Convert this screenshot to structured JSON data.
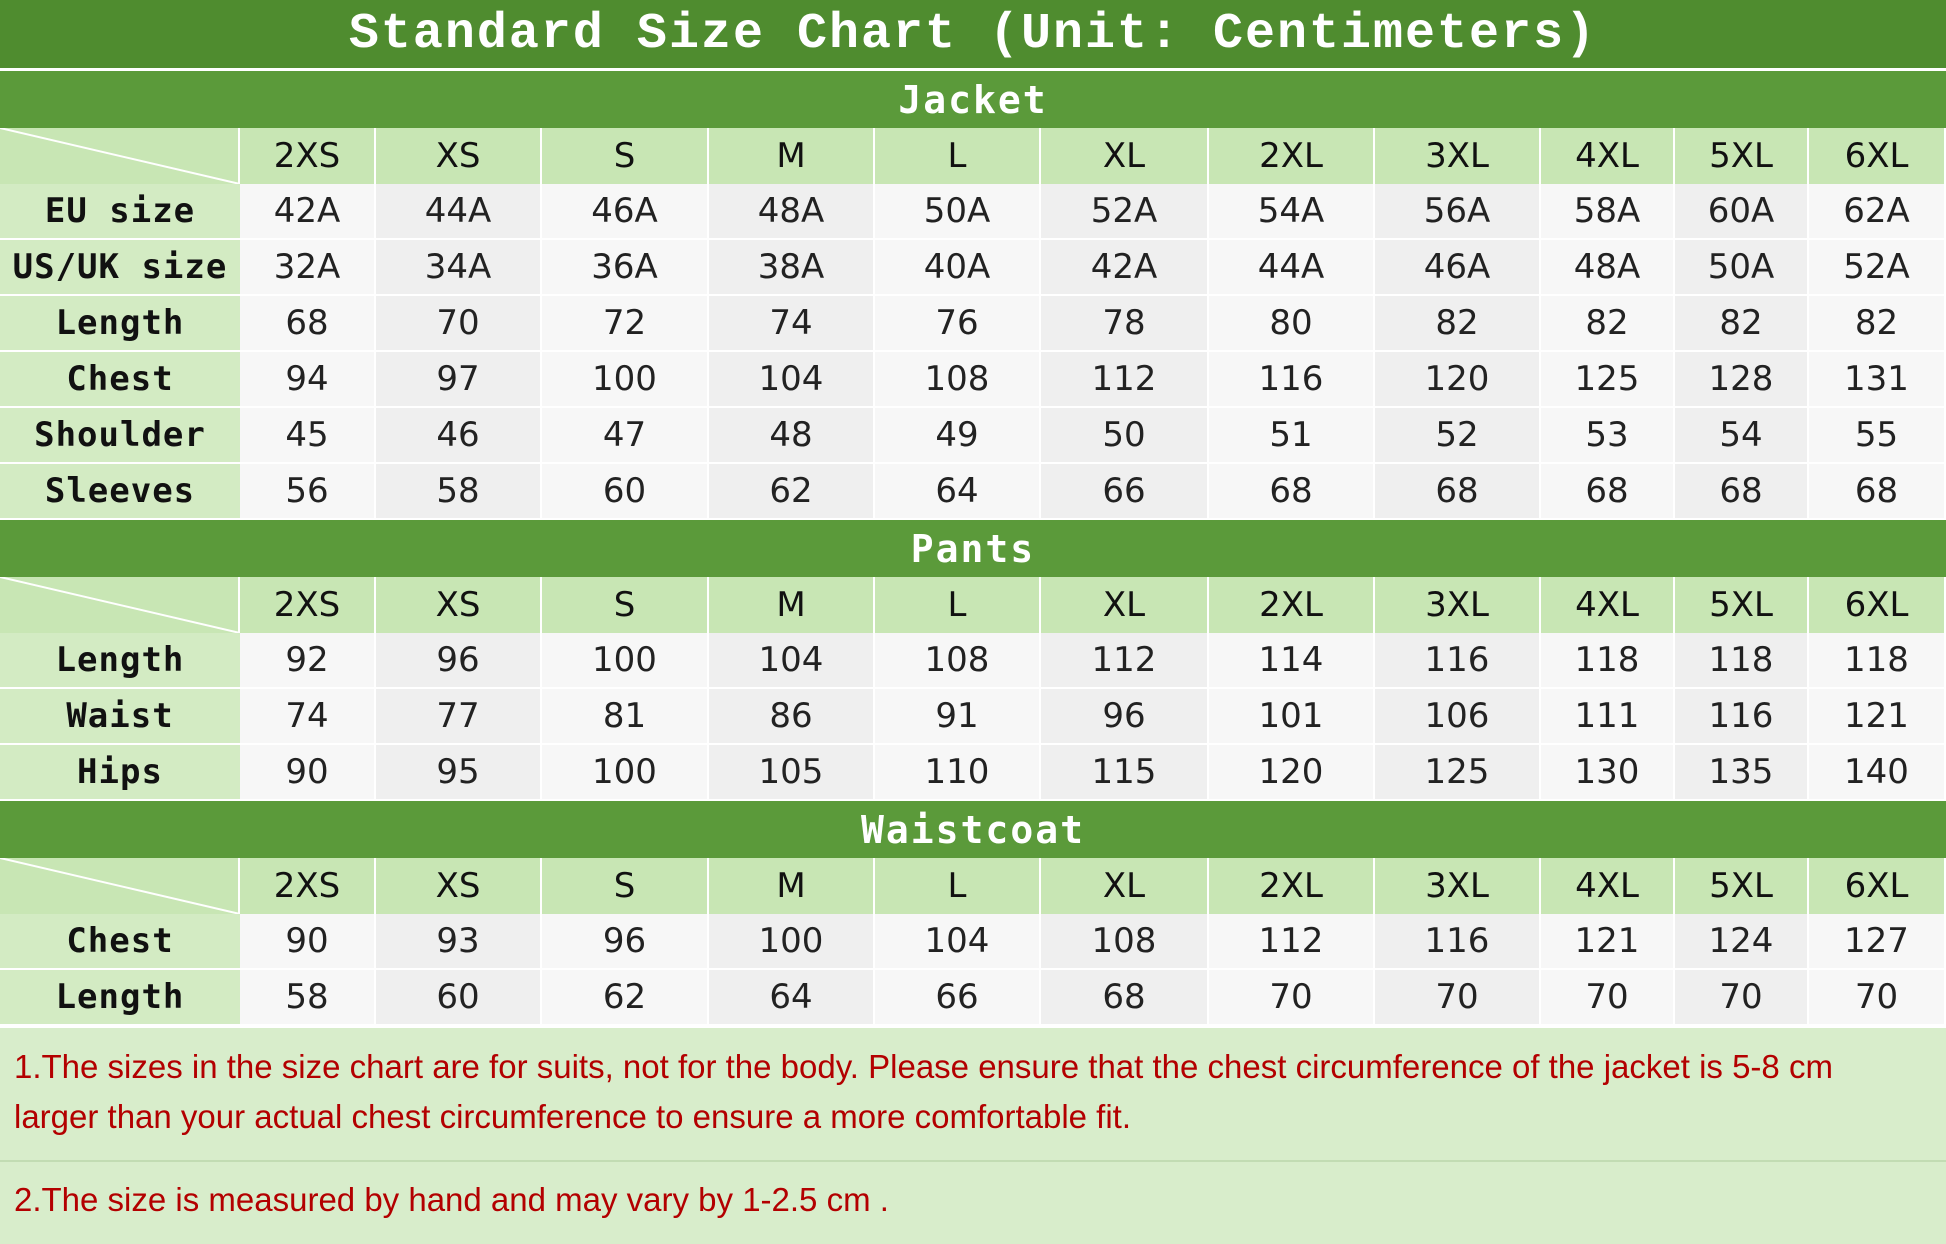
{
  "title": "Standard Size Chart (Unit: Centimeters)",
  "sections": [
    {
      "title": "Jacket",
      "sizes": [
        "2XS",
        "XS",
        "S",
        "M",
        "L",
        "XL",
        "2XL",
        "3XL",
        "4XL",
        "5XL",
        "6XL"
      ],
      "rows": [
        {
          "label": "EU size",
          "values": [
            "42A",
            "44A",
            "46A",
            "48A",
            "50A",
            "52A",
            "54A",
            "56A",
            "58A",
            "60A",
            "62A"
          ]
        },
        {
          "label": "US/UK size",
          "values": [
            "32A",
            "34A",
            "36A",
            "38A",
            "40A",
            "42A",
            "44A",
            "46A",
            "48A",
            "50A",
            "52A"
          ]
        },
        {
          "label": "Length",
          "values": [
            68,
            70,
            72,
            74,
            76,
            78,
            80,
            82,
            82,
            82,
            82
          ]
        },
        {
          "label": "Chest",
          "values": [
            94,
            97,
            100,
            104,
            108,
            112,
            116,
            120,
            125,
            128,
            131
          ]
        },
        {
          "label": "Shoulder",
          "values": [
            45,
            46,
            47,
            48,
            49,
            50,
            51,
            52,
            53,
            54,
            55
          ]
        },
        {
          "label": "Sleeves",
          "values": [
            56,
            58,
            60,
            62,
            64,
            66,
            68,
            68,
            68,
            68,
            68
          ]
        }
      ]
    },
    {
      "title": "Pants",
      "sizes": [
        "2XS",
        "XS",
        "S",
        "M",
        "L",
        "XL",
        "2XL",
        "3XL",
        "4XL",
        "5XL",
        "6XL"
      ],
      "rows": [
        {
          "label": "Length",
          "values": [
            92,
            96,
            100,
            104,
            108,
            112,
            114,
            116,
            118,
            118,
            118
          ]
        },
        {
          "label": "Waist",
          "values": [
            74,
            77,
            81,
            86,
            91,
            96,
            101,
            106,
            111,
            116,
            121
          ]
        },
        {
          "label": "Hips",
          "values": [
            90,
            95,
            100,
            105,
            110,
            115,
            120,
            125,
            130,
            135,
            140
          ]
        }
      ]
    },
    {
      "title": "Waistcoat",
      "sizes": [
        "2XS",
        "XS",
        "S",
        "M",
        "L",
        "XL",
        "2XL",
        "3XL",
        "4XL",
        "5XL",
        "6XL"
      ],
      "rows": [
        {
          "label": "Chest",
          "values": [
            90,
            93,
            96,
            100,
            104,
            108,
            112,
            116,
            121,
            124,
            127
          ]
        },
        {
          "label": "Length",
          "values": [
            58,
            60,
            62,
            64,
            66,
            68,
            70,
            70,
            70,
            70,
            70
          ]
        }
      ]
    }
  ],
  "notes": [
    "1.The sizes in the size chart are for suits, not for the body. Please ensure that the chest circumference of the jacket is 5-8 cm larger than your actual chest circumference to ensure a more comfortable fit.",
    "2.The size is measured by hand and may vary by 1-2.5 cm ."
  ]
}
